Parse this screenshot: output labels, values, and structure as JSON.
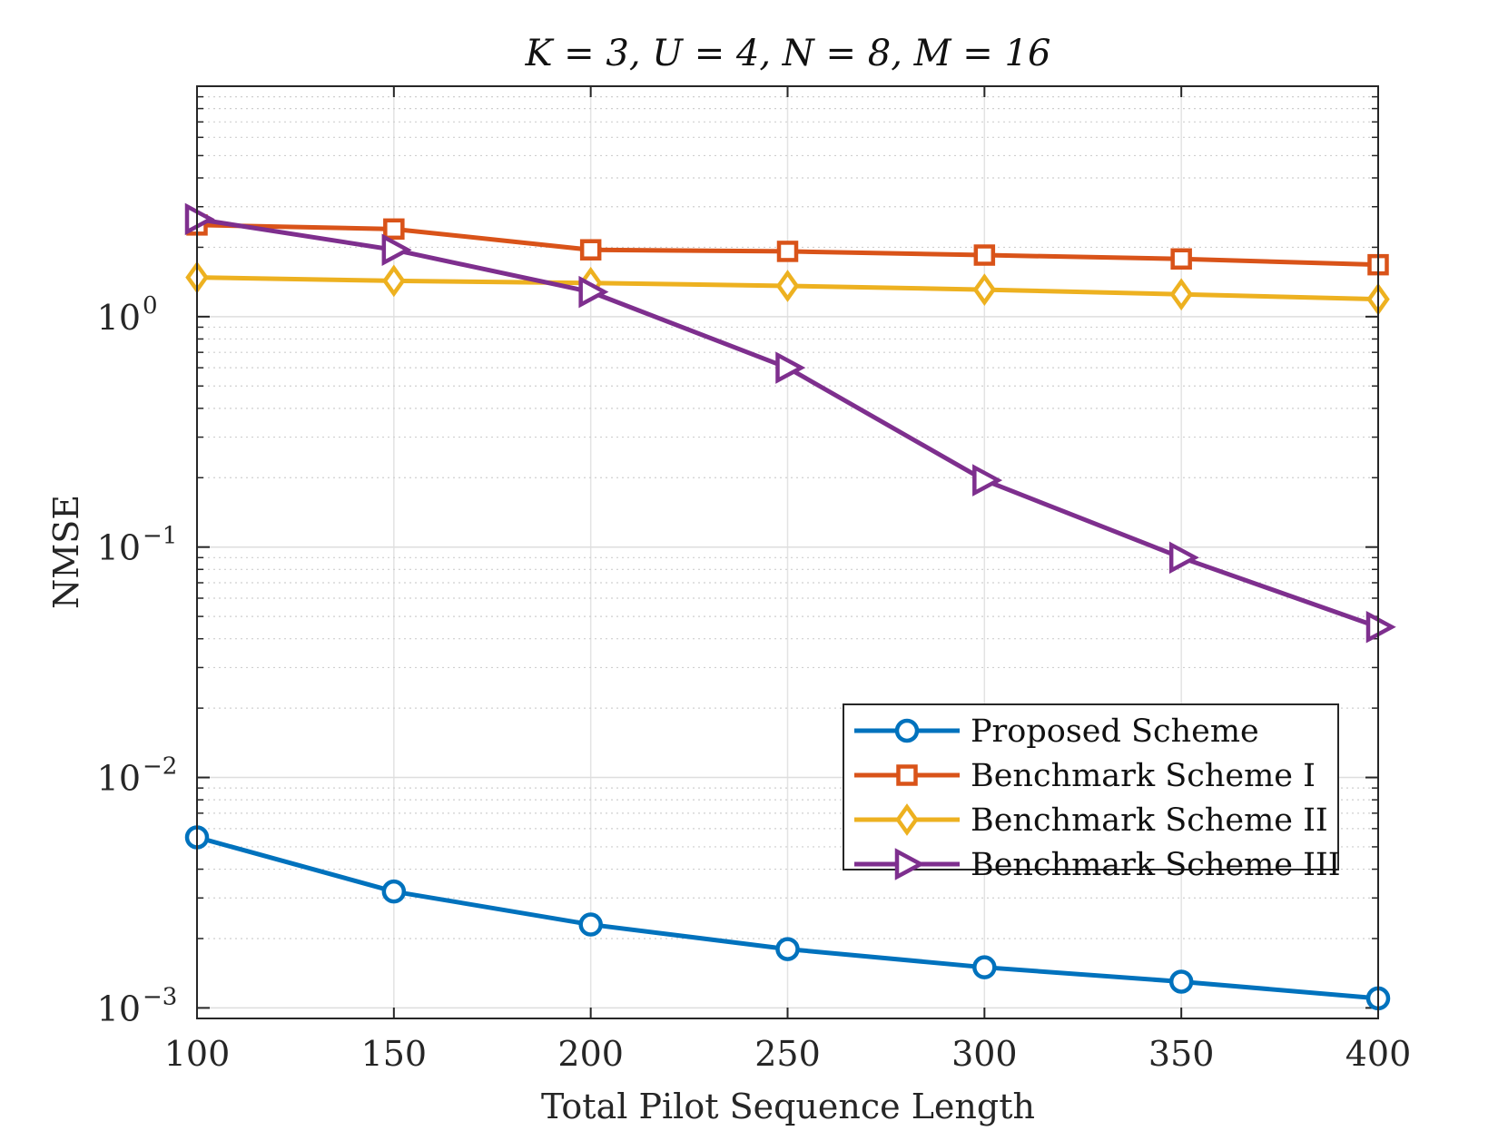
{
  "chart_data": {
    "type": "line",
    "title": "K = 3, U = 4, N = 8, M = 16",
    "xlabel": "Total Pilot Sequence Length",
    "ylabel": "NMSE",
    "x": [
      100,
      150,
      200,
      250,
      300,
      350,
      400
    ],
    "xlim": [
      100,
      400
    ],
    "ylim": [
      0.0009,
      10
    ],
    "yscale": "log",
    "grid": true,
    "legend_position": "lower-right",
    "x_tick_labels": [
      "100",
      "150",
      "200",
      "250",
      "300",
      "350",
      "400"
    ],
    "y_ticks": [
      {
        "value": 1,
        "base": "10",
        "exp": "0"
      },
      {
        "value": 0.1,
        "base": "10",
        "exp": "−1"
      },
      {
        "value": 0.01,
        "base": "10",
        "exp": "−2"
      },
      {
        "value": 0.001,
        "base": "10",
        "exp": "−3"
      }
    ],
    "series": [
      {
        "name": "Proposed Scheme",
        "color": "#0072bd",
        "marker": "circle",
        "values": [
          0.0055,
          0.0032,
          0.0023,
          0.0018,
          0.0015,
          0.0013,
          0.0011
        ]
      },
      {
        "name": "Benchmark Scheme I",
        "color": "#d95319",
        "marker": "square",
        "values": [
          2.5,
          2.4,
          1.95,
          1.92,
          1.85,
          1.78,
          1.68
        ]
      },
      {
        "name": "Benchmark Scheme II",
        "color": "#edb120",
        "marker": "diamond",
        "values": [
          1.48,
          1.43,
          1.4,
          1.36,
          1.31,
          1.25,
          1.19
        ]
      },
      {
        "name": "Benchmark Scheme III",
        "color": "#7e2f8e",
        "marker": "triangle-right",
        "values": [
          2.65,
          1.95,
          1.28,
          0.6,
          0.195,
          0.09,
          0.045
        ]
      }
    ]
  }
}
